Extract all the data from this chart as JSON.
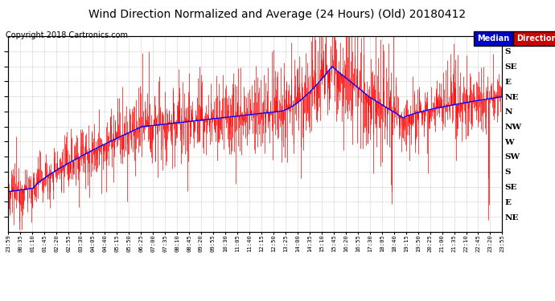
{
  "title": "Wind Direction Normalized and Average (24 Hours) (Old) 20180412",
  "copyright": "Copyright 2018 Cartronics.com",
  "background_color": "#ffffff",
  "plot_bg_color": "#ffffff",
  "grid_color": "#999999",
  "bar_color": "#ff0000",
  "line_color": "#0000ff",
  "title_fontsize": 10,
  "copyright_fontsize": 7,
  "ytick_labels_right": [
    "S",
    "SE",
    "E",
    "NE",
    "N",
    "NW",
    "W",
    "SW",
    "S",
    "SE",
    "E",
    "NE"
  ],
  "ytick_values": [
    180,
    157.5,
    135,
    112.5,
    90,
    67.5,
    45,
    22.5,
    0,
    -22.5,
    -45,
    -67.5
  ],
  "ymin": -90,
  "ymax": 202.5,
  "legend_median_color": "#0000cc",
  "legend_direction_color": "#cc0000",
  "xtick_labels": [
    "23:59",
    "00:35",
    "01:10",
    "01:45",
    "02:20",
    "02:55",
    "03:30",
    "04:05",
    "04:40",
    "05:15",
    "05:50",
    "06:25",
    "07:00",
    "07:35",
    "08:10",
    "08:45",
    "09:20",
    "09:55",
    "10:30",
    "11:05",
    "11:40",
    "12:15",
    "12:50",
    "13:25",
    "14:00",
    "14:35",
    "15:10",
    "15:45",
    "16:20",
    "16:55",
    "17:30",
    "18:05",
    "18:40",
    "19:15",
    "19:50",
    "20:25",
    "21:00",
    "21:35",
    "22:10",
    "22:45",
    "23:20",
    "23:55"
  ]
}
